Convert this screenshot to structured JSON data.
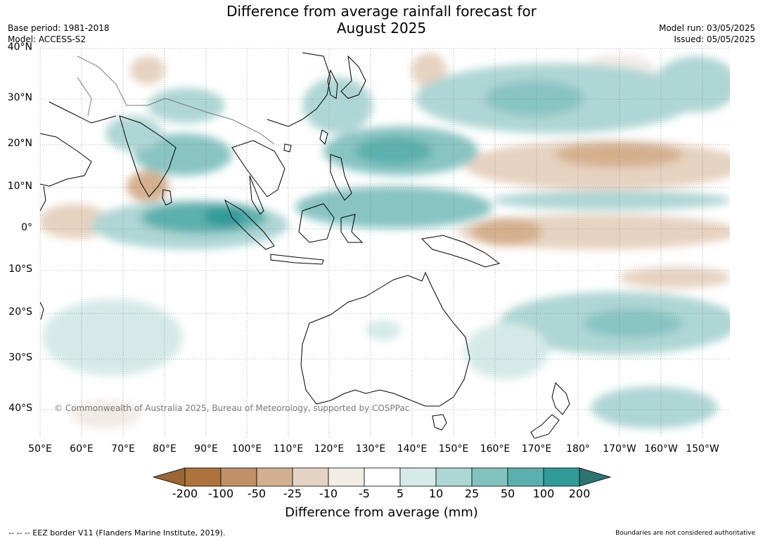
{
  "header": {
    "title_line1": "Difference from average rainfall forecast for",
    "title_line2": "August 2025",
    "base_period": "Base period: 1981-2018",
    "model": "Model: ACCESS-S2",
    "model_run": "Model run: 03/05/2025",
    "issued": "Issued: 05/05/2025"
  },
  "map": {
    "lat_labels": [
      "40°N",
      "30°N",
      "20°N",
      "10°N",
      "0°",
      "10°S",
      "20°S",
      "30°S",
      "40°S"
    ],
    "lon_labels": [
      "50°E",
      "60°E",
      "70°E",
      "80°E",
      "90°E",
      "100°E",
      "110°E",
      "120°E",
      "130°E",
      "140°E",
      "150°E",
      "160°E",
      "170°E",
      "180°",
      "170°W",
      "160°W",
      "150°W"
    ],
    "watermark": "© Commonwealth of Australia 2025, Bureau of Meteorology, supported by COSPPac",
    "colors": {
      "dry_strong": "#b97d4b",
      "dry_moderate": "#d4b08e",
      "dry_light": "#e6d2c0",
      "dry_faint": "#f1ebe6",
      "neutral": "#ffffff",
      "wet_faint": "#d5eae8",
      "wet_light": "#aed6d4",
      "wet_moderate": "#88c4c2",
      "wet_strong": "#5bb0ae",
      "wet_very_strong": "#339b99"
    }
  },
  "colorbar": {
    "ticks": [
      "-200",
      "-100",
      "-50",
      "-25",
      "-10",
      "-5",
      "5",
      "10",
      "25",
      "50",
      "100",
      "200"
    ],
    "label": "Difference from average (mm)",
    "colors": [
      "#9c6635",
      "#ad733c",
      "#c19066",
      "#d3b091",
      "#e4d3c3",
      "#f2ece7",
      "#ffffff",
      "#d6eae8",
      "#acd7d4",
      "#82c3c0",
      "#5bb0ad",
      "#2f9a97",
      "#2d7370"
    ]
  },
  "footer": {
    "eez_note": "--  --  -- EEZ border V11 (Flanders Marine Institute, 2019).",
    "boundary_note": "Boundaries are not considered authoritative"
  }
}
